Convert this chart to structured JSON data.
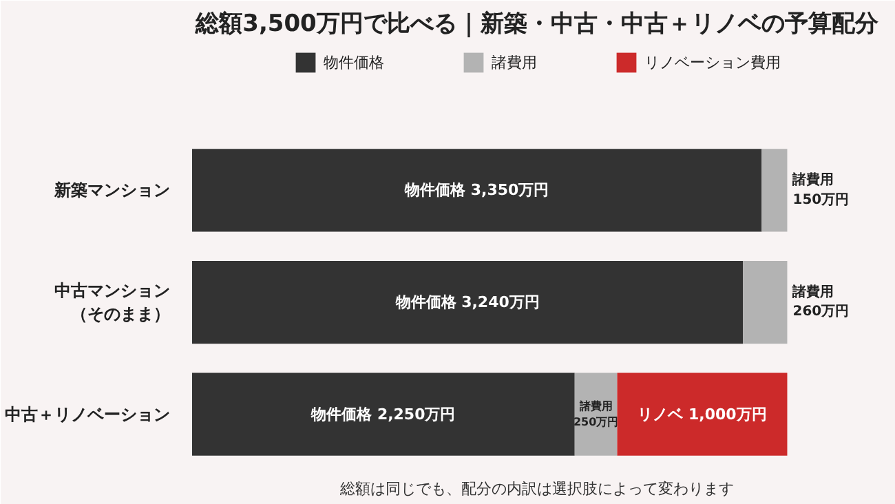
{
  "chart_data": {
    "type": "bar",
    "orientation": "horizontal",
    "stacked": true,
    "title": "総額3,500万円で比べる｜新築・中古・中古＋リノベの予算配分",
    "categories": [
      "新築マンション",
      "中古マンション（そのまま）",
      "中古＋リノベーション"
    ],
    "series": [
      {
        "name": "物件価格",
        "color": "#333333",
        "values": [
          3350,
          3240,
          2250
        ],
        "value_labels": [
          "物件価格 3,350万円",
          "物件価格 3,240万円",
          "物件価格 2,250万円"
        ]
      },
      {
        "name": "諸費用",
        "color": "#b3b3b3",
        "values": [
          150,
          260,
          250
        ],
        "value_labels": [
          "諸費用\n150万円",
          "諸費用\n260万円",
          "諸費用\n250万円"
        ]
      },
      {
        "name": "リノベーション費用",
        "color": "#cc2a2a",
        "values": [
          null,
          null,
          1000
        ],
        "value_labels": [
          null,
          null,
          "リノベ 1,000万円"
        ]
      }
    ],
    "legend": "top",
    "grid": false,
    "annotations": [
      "総額は同じでも、配分の内訳は選択肢によって変わります"
    ]
  }
}
